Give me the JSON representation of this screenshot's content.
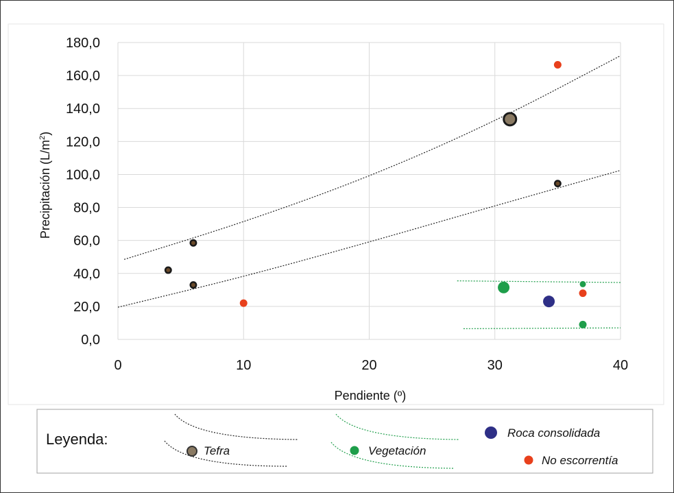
{
  "chart_data": {
    "type": "scatter",
    "xlabel": "Pendiente (º)",
    "ylabel": "Precipitación (L/m",
    "ylabel_sup": "2",
    "ylabel_close": ")",
    "xlim": [
      0,
      40
    ],
    "ylim": [
      0,
      180
    ],
    "x_ticks": [
      "0",
      "10",
      "20",
      "30",
      "40"
    ],
    "y_ticks": [
      "0,0",
      "20,0",
      "40,0",
      "60,0",
      "80,0",
      "100,0",
      "120,0",
      "140,0",
      "160,0",
      "180,0"
    ],
    "grid": true,
    "legend_position": "bottom",
    "series": [
      {
        "name": "Tefra",
        "color": "#8a7a63",
        "points": [
          {
            "x": 4,
            "y": 42,
            "size": "small"
          },
          {
            "x": 6,
            "y": 58.5,
            "size": "small"
          },
          {
            "x": 6,
            "y": 33,
            "size": "small"
          },
          {
            "x": 31.2,
            "y": 133.5,
            "size": "large"
          },
          {
            "x": 35,
            "y": 94.5,
            "size": "small"
          }
        ]
      },
      {
        "name": "Vegetación",
        "color": "#1e9e4a",
        "points": [
          {
            "x": 30.7,
            "y": 31.5,
            "size": "medium"
          },
          {
            "x": 37,
            "y": 33.5,
            "size": "tiny"
          },
          {
            "x": 37,
            "y": 9,
            "size": "small"
          }
        ]
      },
      {
        "name": "Roca consolidada",
        "color": "#2e2f86",
        "points": [
          {
            "x": 34.3,
            "y": 23,
            "size": "medium"
          }
        ]
      },
      {
        "name": "No escorrentía",
        "color": "#e8401c",
        "points": [
          {
            "x": 10,
            "y": 22,
            "size": "small"
          },
          {
            "x": 35,
            "y": 166.5,
            "size": "small"
          },
          {
            "x": 37,
            "y": 28,
            "size": "small"
          }
        ]
      }
    ],
    "trendlines": [
      {
        "series": "Tefra",
        "color": "#222222",
        "points": [
          [
            0.5,
            48.5
          ],
          [
            10,
            71
          ],
          [
            20,
            98.5
          ],
          [
            30,
            132
          ],
          [
            40,
            172
          ]
        ]
      },
      {
        "series": "Tefra",
        "color": "#222222",
        "points": [
          [
            0,
            19.5
          ],
          [
            10,
            38
          ],
          [
            20,
            59
          ],
          [
            30,
            81
          ],
          [
            40,
            102.5
          ]
        ]
      },
      {
        "series": "Vegetación",
        "color": "#1e9e4a",
        "points": [
          [
            27,
            35.5
          ],
          [
            40,
            34.5
          ]
        ]
      },
      {
        "series": "Vegetación",
        "color": "#1e9e4a",
        "points": [
          [
            27.5,
            6.5
          ],
          [
            40,
            7
          ]
        ]
      }
    ]
  },
  "legend": {
    "title": "Leyenda:",
    "items": [
      {
        "label": "Tefra",
        "color": "#8a7a63"
      },
      {
        "label": "Vegetación",
        "color": "#1e9e4a"
      },
      {
        "label": "Roca consolidada",
        "color": "#2e2f86"
      },
      {
        "label": "No escorrentía",
        "color": "#e8401c"
      }
    ]
  }
}
